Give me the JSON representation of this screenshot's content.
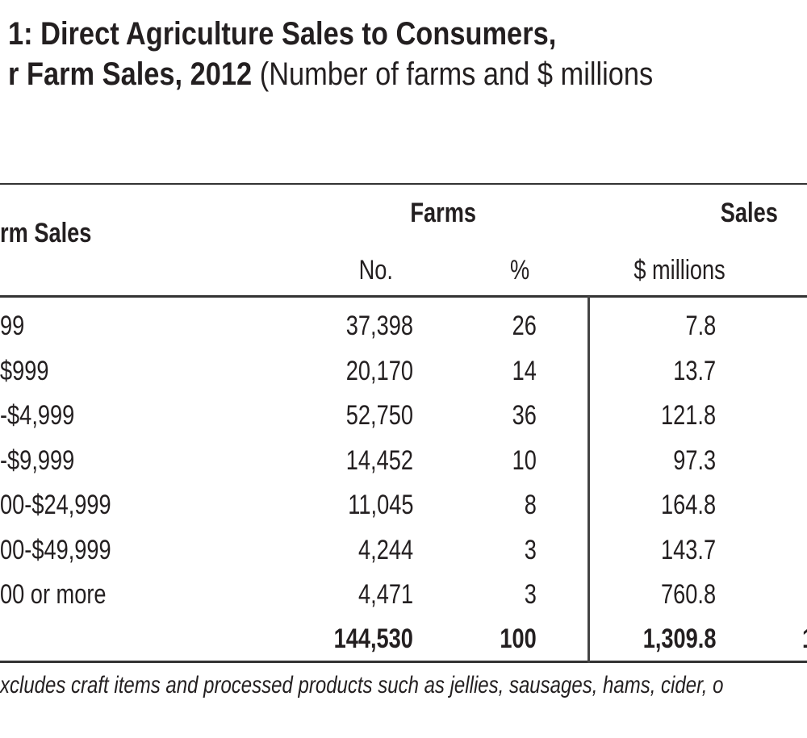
{
  "title": {
    "line1": "1: Direct Agriculture Sales to Consumers,",
    "line2_bold": "r Farm Sales, 2012",
    "line2_normal": "(Number of farms and $ millions"
  },
  "header": {
    "label_col": "rm Sales",
    "farms_group": "Farms",
    "sales_group": "Sales",
    "farms_no": "No.",
    "farms_pct": "%",
    "sales_millions": "$ millions"
  },
  "rows": [
    {
      "label": "99",
      "no": "37,398",
      "pct": "26",
      "sales": "7.8"
    },
    {
      "label": "$999",
      "no": "20,170",
      "pct": "14",
      "sales": "13.7"
    },
    {
      "label": "-$4,999",
      "no": "52,750",
      "pct": "36",
      "sales": "121.8"
    },
    {
      "label": "-$9,999",
      "no": "14,452",
      "pct": "10",
      "sales": "97.3"
    },
    {
      "label": "00-$24,999",
      "no": "11,045",
      "pct": "8",
      "sales": "164.8"
    },
    {
      "label": "00-$49,999",
      "no": "4,244",
      "pct": "3",
      "sales": "143.7"
    },
    {
      "label": "00 or more",
      "no": "4,471",
      "pct": "3",
      "sales": "760.8"
    }
  ],
  "total": {
    "no": "144,530",
    "pct": "100",
    "sales": "1,309.8",
    "extra": "1"
  },
  "footnote": "xcludes craft items and processed products such as jellies, sausages, hams, cider, o"
}
